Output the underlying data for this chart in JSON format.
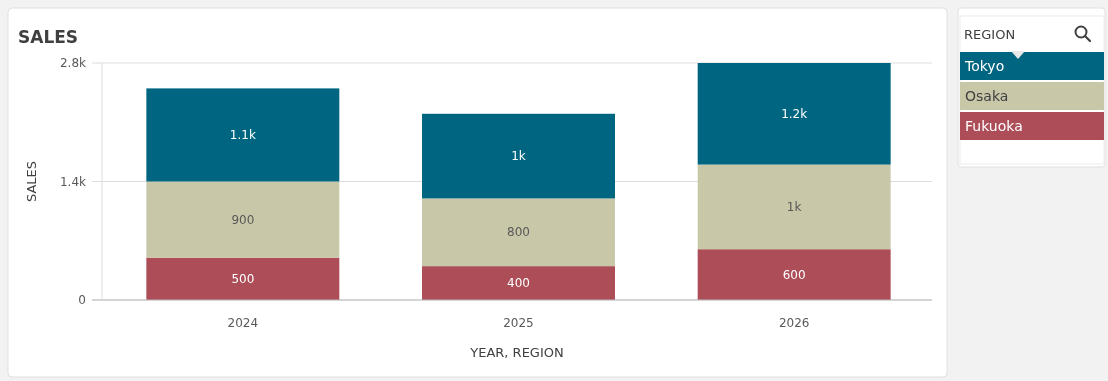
{
  "chart_data": {
    "type": "bar",
    "title": "SALES",
    "xlabel": "YEAR, REGION",
    "ylabel": "SALES",
    "legend_title": "REGION",
    "categories": [
      "2024",
      "2025",
      "2026"
    ],
    "stacked": true,
    "ylim": [
      0,
      2800
    ],
    "yticks": [
      {
        "value": 0,
        "label": "0"
      },
      {
        "value": 1400,
        "label": "1.4k"
      },
      {
        "value": 2800,
        "label": "2.8k"
      }
    ],
    "grid": "y",
    "legend": "right",
    "series": [
      {
        "name": "Fukuoka",
        "color": "#ac4d58",
        "values": [
          500,
          400,
          600
        ],
        "value_labels": [
          "500",
          "400",
          "600"
        ]
      },
      {
        "name": "Osaka",
        "color": "#c8c8a9",
        "values": [
          900,
          800,
          1000
        ],
        "value_labels": [
          "900",
          "800",
          "1k"
        ]
      },
      {
        "name": "Tokyo",
        "color": "#006580",
        "values": [
          1100,
          1000,
          1200
        ],
        "value_labels": [
          "1.1k",
          "1k",
          "1.2k"
        ]
      }
    ]
  }
}
